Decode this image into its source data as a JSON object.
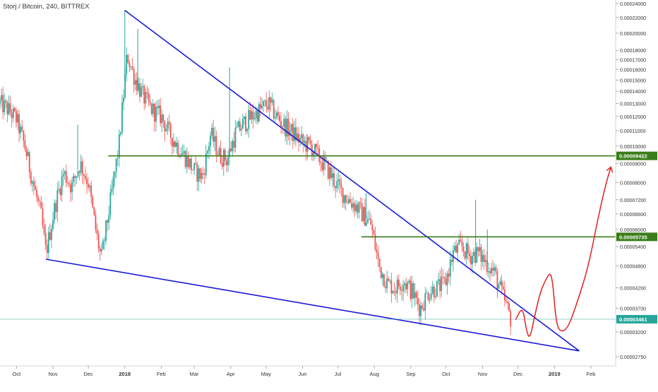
{
  "header": {
    "symbol_label": "Storj / Bitcoin, 240, BITTREX"
  },
  "colors": {
    "up": "#26a69a",
    "down": "#ef5350",
    "trendline": "#1a1ad6",
    "level": "#3a7d1a",
    "projection": "#e02020",
    "price_line": "#26a69a",
    "axis_text": "#333333",
    "grid": "#eeeeee"
  },
  "chart_data": {
    "type": "candlestick",
    "title": "Storj / Bitcoin, 240, BITTREX",
    "y_scale": "log",
    "ylim": [
      2.6e-05,
      0.000245
    ],
    "xlim": [
      "2017-09-17",
      "2019-02-22"
    ],
    "y_ticks": [
      "0.00024000",
      "0.00022000",
      "0.00020000",
      "0.00018000",
      "0.00017000",
      "0.00016000",
      "0.00015000",
      "0.00014000",
      "0.00013000",
      "0.00012000",
      "0.00011000",
      "0.00010000",
      "0.00009000",
      "0.00008000",
      "0.00007200",
      "0.00006600",
      "0.00006000",
      "0.00005400",
      "0.00004800",
      "0.00004200",
      "0.00003700",
      "0.00003200",
      "0.00002750"
    ],
    "x_ticks": [
      {
        "label": "Oct",
        "date": "2017-10-01"
      },
      {
        "label": "Nov",
        "date": "2017-11-01"
      },
      {
        "label": "Dec",
        "date": "2017-12-01"
      },
      {
        "label": "2018",
        "date": "2018-01-01"
      },
      {
        "label": "Feb",
        "date": "2018-02-01"
      },
      {
        "label": "Mar",
        "date": "2018-03-01"
      },
      {
        "label": "Apr",
        "date": "2018-04-01"
      },
      {
        "label": "May",
        "date": "2018-05-01"
      },
      {
        "label": "Jun",
        "date": "2018-06-01"
      },
      {
        "label": "Jul",
        "date": "2018-07-01"
      },
      {
        "label": "Aug",
        "date": "2018-08-01"
      },
      {
        "label": "Sep",
        "date": "2018-09-01"
      },
      {
        "label": "Oct",
        "date": "2018-10-01"
      },
      {
        "label": "Nov",
        "date": "2018-11-01"
      },
      {
        "label": "Dec",
        "date": "2018-12-01"
      },
      {
        "label": "2019",
        "date": "2019-01-01"
      },
      {
        "label": "Feb",
        "date": "2019-02-01"
      }
    ],
    "price_path": [
      {
        "date": "2017-09-17",
        "value": 0.00013
      },
      {
        "date": "2017-09-24",
        "value": 0.000125
      },
      {
        "date": "2017-10-01",
        "value": 0.000118
      },
      {
        "date": "2017-10-08",
        "value": 0.0001
      },
      {
        "date": "2017-10-15",
        "value": 8e-05
      },
      {
        "date": "2017-10-22",
        "value": 6.5e-05
      },
      {
        "date": "2017-10-26",
        "value": 5.2e-05
      },
      {
        "date": "2017-11-03",
        "value": 7e-05
      },
      {
        "date": "2017-11-10",
        "value": 8.5e-05
      },
      {
        "date": "2017-11-17",
        "value": 7.8e-05
      },
      {
        "date": "2017-11-24",
        "value": 9e-05
      },
      {
        "date": "2017-12-01",
        "value": 8e-05
      },
      {
        "date": "2017-12-08",
        "value": 5.8e-05
      },
      {
        "date": "2017-12-12",
        "value": 5e-05
      },
      {
        "date": "2017-12-20",
        "value": 7.2e-05
      },
      {
        "date": "2017-12-27",
        "value": 0.0001
      },
      {
        "date": "2018-01-03",
        "value": 0.000175
      },
      {
        "date": "2018-01-10",
        "value": 0.00015
      },
      {
        "date": "2018-01-17",
        "value": 0.000135
      },
      {
        "date": "2018-01-24",
        "value": 0.000125
      },
      {
        "date": "2018-02-01",
        "value": 0.00012
      },
      {
        "date": "2018-02-08",
        "value": 0.000108
      },
      {
        "date": "2018-02-15",
        "value": 0.0001
      },
      {
        "date": "2018-02-22",
        "value": 9.3e-05
      },
      {
        "date": "2018-03-01",
        "value": 8.6e-05
      },
      {
        "date": "2018-03-08",
        "value": 8.3e-05
      },
      {
        "date": "2018-03-15",
        "value": 0.000108
      },
      {
        "date": "2018-03-22",
        "value": 9.5e-05
      },
      {
        "date": "2018-03-29",
        "value": 9.2e-05
      },
      {
        "date": "2018-04-05",
        "value": 0.000108
      },
      {
        "date": "2018-04-12",
        "value": 0.000115
      },
      {
        "date": "2018-04-19",
        "value": 0.00012
      },
      {
        "date": "2018-04-26",
        "value": 0.000125
      },
      {
        "date": "2018-05-03",
        "value": 0.00013
      },
      {
        "date": "2018-05-10",
        "value": 0.00012
      },
      {
        "date": "2018-05-17",
        "value": 0.000113
      },
      {
        "date": "2018-05-24",
        "value": 0.000108
      },
      {
        "date": "2018-06-01",
        "value": 0.000102
      },
      {
        "date": "2018-06-08",
        "value": 0.0001
      },
      {
        "date": "2018-06-15",
        "value": 9.3e-05
      },
      {
        "date": "2018-06-22",
        "value": 8.7e-05
      },
      {
        "date": "2018-07-01",
        "value": 7.8e-05
      },
      {
        "date": "2018-07-08",
        "value": 7.3e-05
      },
      {
        "date": "2018-07-15",
        "value": 7e-05
      },
      {
        "date": "2018-07-22",
        "value": 6.6e-05
      },
      {
        "date": "2018-07-29",
        "value": 6.2e-05
      },
      {
        "date": "2018-08-05",
        "value": 4.8e-05
      },
      {
        "date": "2018-08-12",
        "value": 4.3e-05
      },
      {
        "date": "2018-08-19",
        "value": 4.2e-05
      },
      {
        "date": "2018-08-26",
        "value": 4.4e-05
      },
      {
        "date": "2018-09-02",
        "value": 4.1e-05
      },
      {
        "date": "2018-09-09",
        "value": 3.7e-05
      },
      {
        "date": "2018-09-16",
        "value": 4.1e-05
      },
      {
        "date": "2018-09-23",
        "value": 4.2e-05
      },
      {
        "date": "2018-09-30",
        "value": 4.3e-05
      },
      {
        "date": "2018-10-07",
        "value": 5.2e-05
      },
      {
        "date": "2018-10-14",
        "value": 5.4e-05
      },
      {
        "date": "2018-10-21",
        "value": 5.1e-05
      },
      {
        "date": "2018-10-28",
        "value": 5.2e-05
      },
      {
        "date": "2018-11-04",
        "value": 4.9e-05
      },
      {
        "date": "2018-11-11",
        "value": 4.6e-05
      },
      {
        "date": "2018-11-18",
        "value": 4e-05
      },
      {
        "date": "2018-11-25",
        "value": 3.46e-05
      }
    ],
    "spikes": [
      {
        "date": "2017-11-22",
        "high": 0.000114
      },
      {
        "date": "2018-01-01",
        "high": 0.00023
      },
      {
        "date": "2018-01-12",
        "high": 0.000205
      },
      {
        "date": "2018-03-31",
        "high": 0.000162
      },
      {
        "date": "2018-07-25",
        "high": 7.5e-05
      },
      {
        "date": "2018-10-26",
        "high": 7.2e-05
      },
      {
        "date": "2018-11-05",
        "high": 6e-05
      }
    ],
    "trendlines": [
      {
        "from": {
          "date": "2018-01-01",
          "value": 0.00023
        },
        "to": {
          "date": "2019-01-22",
          "value": 2.85e-05
        }
      },
      {
        "from": {
          "date": "2017-10-26",
          "value": 5e-05
        },
        "to": {
          "date": "2019-01-22",
          "value": 2.85e-05
        }
      }
    ],
    "levels": [
      {
        "value": 9.422e-05,
        "label": "0.00009422",
        "from_date": "2017-12-18"
      },
      {
        "value": 5.735e-05,
        "label": "0.00005735",
        "from_date": "2018-07-21"
      }
    ],
    "last_price": {
      "value": 3.461e-05,
      "label": "0.00003461"
    },
    "projection": [
      {
        "date": "2018-11-29",
        "value": 3.45e-05
      },
      {
        "date": "2018-12-05",
        "value": 3.75e-05
      },
      {
        "date": "2018-12-08",
        "value": 3.25e-05
      },
      {
        "date": "2018-12-11",
        "value": 3.05e-05
      },
      {
        "date": "2018-12-15",
        "value": 3.5e-05
      },
      {
        "date": "2018-12-20",
        "value": 4.1e-05
      },
      {
        "date": "2018-12-26",
        "value": 4.5e-05
      },
      {
        "date": "2018-12-29",
        "value": 4.6e-05
      },
      {
        "date": "2018-12-31",
        "value": 4.2e-05
      },
      {
        "date": "2019-01-02",
        "value": 3.5e-05
      },
      {
        "date": "2019-01-05",
        "value": 3.2e-05
      },
      {
        "date": "2019-01-12",
        "value": 3.25e-05
      },
      {
        "date": "2019-01-20",
        "value": 3.8e-05
      },
      {
        "date": "2019-01-30",
        "value": 4.8e-05
      },
      {
        "date": "2019-02-06",
        "value": 6.2e-05
      },
      {
        "date": "2019-02-13",
        "value": 7.8e-05
      },
      {
        "date": "2019-02-18",
        "value": 8.8e-05
      }
    ],
    "grid": false,
    "legend": "none"
  }
}
